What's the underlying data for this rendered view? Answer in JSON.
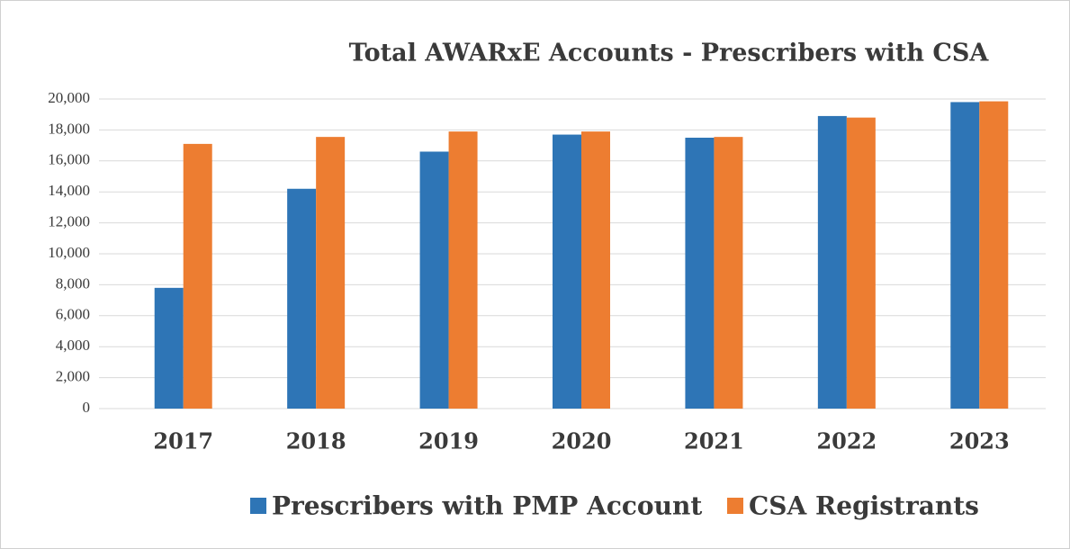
{
  "chart_data": {
    "type": "bar",
    "title": "Total AWARxE Accounts - Prescribers with CSA",
    "categories": [
      "2017",
      "2018",
      "2019",
      "2020",
      "2021",
      "2022",
      "2023"
    ],
    "series": [
      {
        "name": "Prescribers with PMP Account",
        "color": "#2e75b6",
        "values": [
          7800,
          14200,
          16600,
          17700,
          17500,
          18900,
          19800
        ]
      },
      {
        "name": "CSA Registrants",
        "color": "#ed7d31",
        "values": [
          17100,
          17550,
          17900,
          17900,
          17550,
          18800,
          19850
        ]
      }
    ],
    "ylim": [
      0,
      20000
    ],
    "yticks": [
      0,
      {
        "value": 2000,
        "label": "2,000"
      },
      {
        "value": 4000,
        "label": "4,000"
      },
      {
        "value": 6000,
        "label": "6,000"
      },
      {
        "value": 8000,
        "label": "8,000"
      },
      {
        "value": 10000,
        "label": "10,000"
      },
      {
        "value": 12000,
        "label": "12,000"
      },
      {
        "value": 14000,
        "label": "14,000"
      },
      {
        "value": 16000,
        "label": "16,000"
      },
      {
        "value": 18000,
        "label": "18,000"
      },
      {
        "value": 20000,
        "label": "20,000"
      }
    ],
    "grid": true,
    "legend": "bottom"
  }
}
